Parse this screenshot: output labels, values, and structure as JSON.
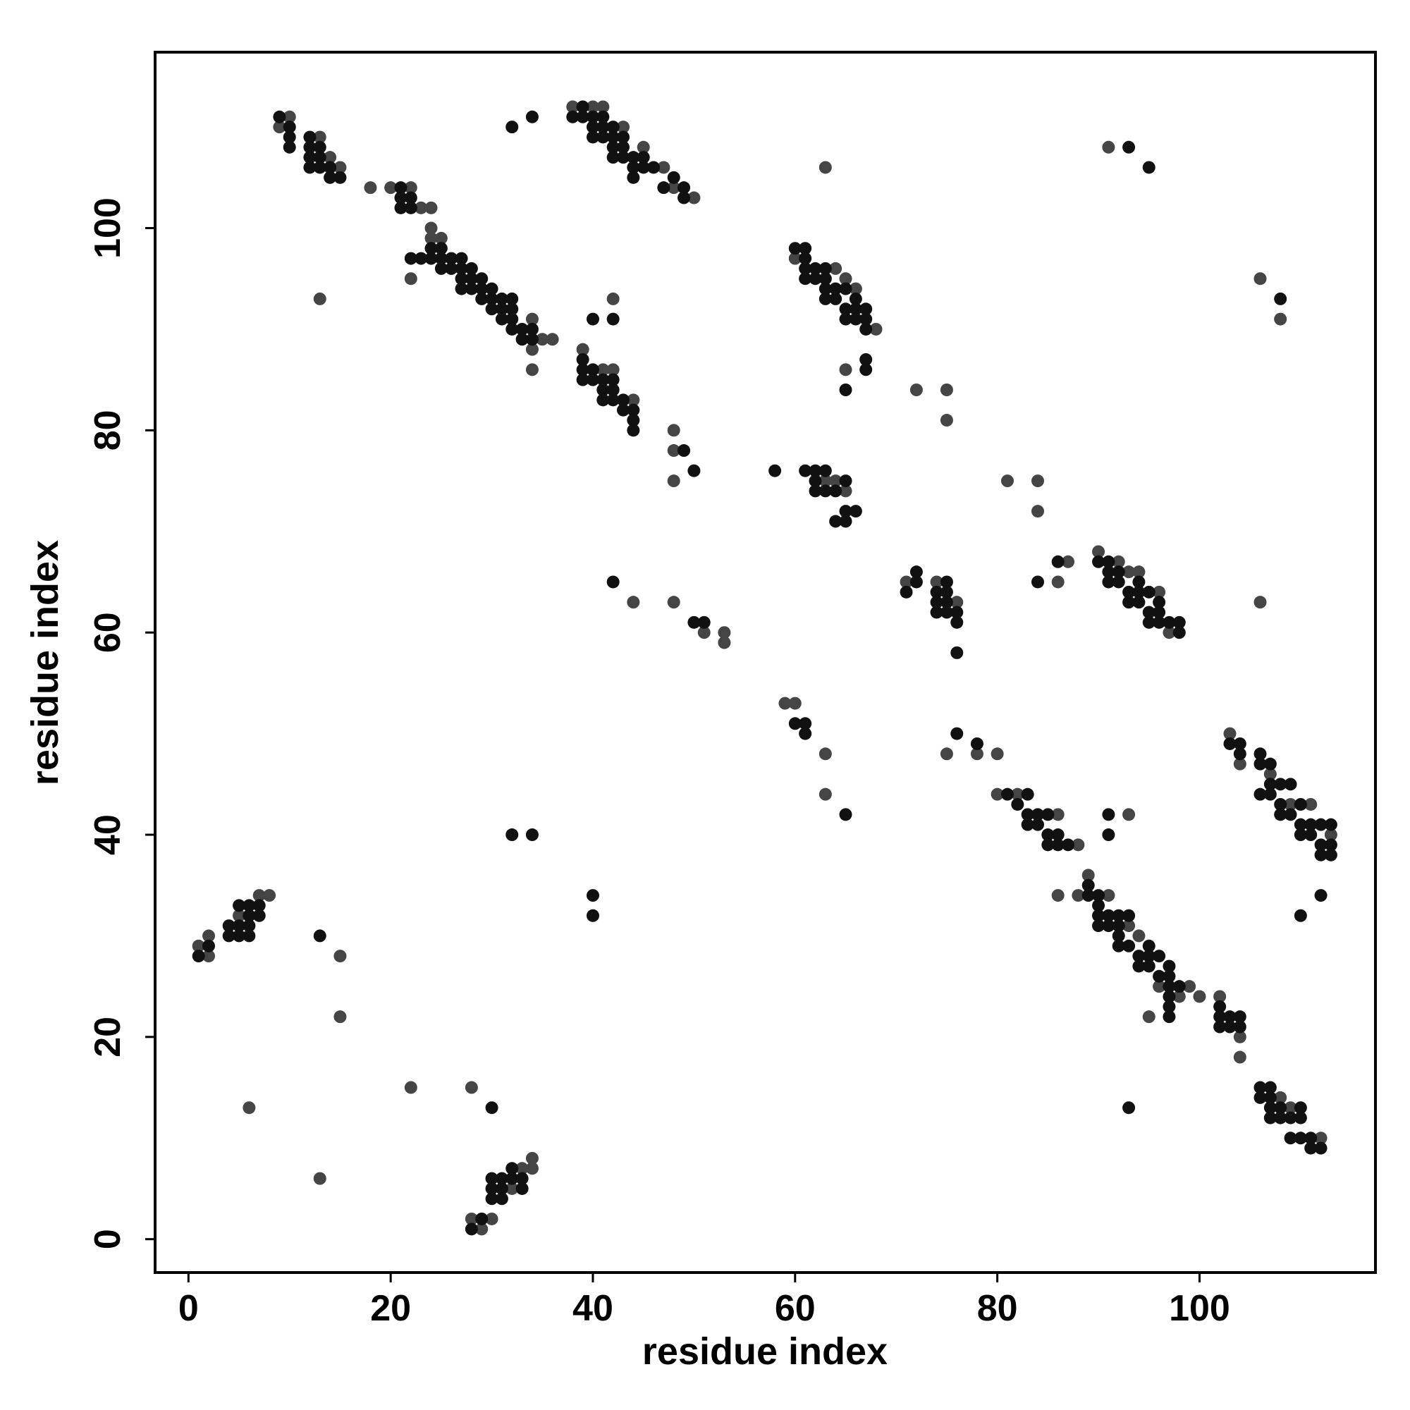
{
  "chart_data": {
    "type": "scatter",
    "x_label": "residue index",
    "y_label": "residue index",
    "xlim": [
      -3.3,
      117.4
    ],
    "ylim": [
      -3.3,
      117.4
    ],
    "xticks": [
      0,
      20,
      40,
      60,
      80,
      100
    ],
    "yticks": [
      0,
      20,
      40,
      60,
      80,
      100
    ],
    "grid": false,
    "groups": [
      {
        "color": "#454545",
        "x": [
          9,
          10,
          13,
          14,
          15,
          18,
          20,
          22,
          23,
          24,
          24,
          24,
          25,
          22,
          13,
          34,
          34,
          34,
          35,
          36,
          38,
          40,
          41,
          43,
          45,
          47,
          48,
          50,
          42,
          39,
          42,
          41,
          44,
          48,
          48,
          48,
          63,
          60,
          64,
          65,
          66,
          68,
          65,
          63,
          64,
          65,
          72,
          75,
          75,
          71,
          74,
          76,
          81,
          84,
          84,
          86,
          87,
          90,
          92,
          93,
          94,
          96,
          97,
          91,
          106,
          108,
          106,
          44,
          48,
          51,
          53,
          53,
          59,
          60,
          63,
          63,
          75,
          78,
          80,
          80,
          82,
          86,
          88,
          93,
          103,
          104,
          107,
          109,
          111,
          113,
          86,
          88,
          89,
          91,
          93,
          94,
          96,
          98,
          99,
          100,
          95,
          102,
          104,
          104,
          108,
          109,
          112,
          1,
          2,
          2,
          5,
          7,
          8,
          15,
          15,
          6,
          13,
          22,
          28,
          28,
          29,
          30,
          33,
          34,
          34,
          32
        ],
        "y": [
          110,
          111,
          109,
          107,
          106,
          104,
          104,
          104,
          102,
          102,
          100,
          99,
          99,
          95,
          93,
          91,
          88,
          86,
          89,
          89,
          112,
          112,
          112,
          110,
          108,
          106,
          104,
          103,
          93,
          88,
          86,
          86,
          83,
          80,
          75,
          78,
          106,
          97,
          96,
          95,
          94,
          90,
          86,
          75,
          75,
          74,
          84,
          84,
          81,
          65,
          65,
          63,
          75,
          75,
          72,
          65,
          67,
          68,
          67,
          66,
          66,
          64,
          60,
          108,
          95,
          91,
          63,
          63,
          63,
          60,
          60,
          59,
          53,
          53,
          48,
          44,
          48,
          48,
          48,
          44,
          44,
          42,
          39,
          42,
          50,
          47,
          46,
          43,
          43,
          40,
          34,
          34,
          36,
          34,
          31,
          30,
          25,
          24,
          25,
          24,
          22,
          24,
          20,
          18,
          14,
          13,
          10,
          29,
          30,
          28,
          32,
          34,
          34,
          28,
          22,
          13,
          6,
          15,
          15,
          2,
          1,
          2,
          7,
          8,
          7,
          5
        ]
      },
      {
        "color": "#111111",
        "x": [
          9,
          10,
          10,
          10,
          12,
          12,
          12,
          12,
          13,
          13,
          13,
          14,
          14,
          15,
          21,
          21,
          21,
          22,
          22,
          24,
          24,
          23,
          22,
          25,
          25,
          25,
          26,
          26,
          27,
          27,
          27,
          27,
          28,
          28,
          28,
          29,
          29,
          29,
          30,
          30,
          30,
          31,
          31,
          31,
          32,
          32,
          32,
          32,
          33,
          33,
          34,
          34,
          32,
          34,
          38,
          39,
          39,
          40,
          40,
          40,
          41,
          41,
          41,
          42,
          42,
          42,
          42,
          43,
          43,
          43,
          44,
          44,
          44,
          45,
          45,
          46,
          47,
          48,
          49,
          49,
          40,
          42,
          39,
          39,
          39,
          40,
          40,
          41,
          41,
          41,
          42,
          42,
          42,
          43,
          43,
          44,
          44,
          44,
          49,
          50,
          58,
          60,
          61,
          61,
          61,
          61,
          62,
          62,
          63,
          63,
          63,
          63,
          64,
          64,
          65,
          65,
          65,
          66,
          66,
          66,
          67,
          67,
          67,
          67,
          67,
          65,
          61,
          62,
          62,
          62,
          63,
          63,
          64,
          65,
          65,
          65,
          66,
          64,
          71,
          72,
          72,
          74,
          74,
          74,
          75,
          75,
          75,
          75,
          76,
          76,
          76,
          84,
          86,
          90,
          91,
          91,
          91,
          92,
          92,
          93,
          93,
          94,
          94,
          94,
          95,
          95,
          95,
          96,
          96,
          96,
          97,
          98,
          98,
          93,
          95,
          108,
          42,
          50,
          51,
          60,
          61,
          61,
          65,
          76,
          78,
          81,
          82,
          83,
          83,
          83,
          84,
          84,
          85,
          85,
          85,
          86,
          86,
          87,
          91,
          91,
          103,
          104,
          104,
          106,
          106,
          106,
          107,
          107,
          107,
          108,
          108,
          108,
          109,
          109,
          110,
          110,
          110,
          111,
          111,
          112,
          112,
          112,
          113,
          113,
          113,
          112,
          110,
          89,
          89,
          90,
          90,
          90,
          90,
          91,
          91,
          92,
          92,
          92,
          92,
          93,
          93,
          94,
          94,
          95,
          95,
          95,
          96,
          96,
          97,
          97,
          97,
          97,
          97,
          97,
          98,
          102,
          102,
          102,
          103,
          103,
          104,
          104,
          106,
          106,
          107,
          107,
          107,
          107,
          108,
          108,
          109,
          110,
          110,
          109,
          110,
          111,
          111,
          112,
          93,
          1,
          2,
          4,
          4,
          5,
          5,
          5,
          6,
          6,
          6,
          6,
          7,
          7,
          13,
          32,
          34,
          40,
          40,
          30,
          28,
          29,
          30,
          30,
          30,
          31,
          31,
          31,
          32,
          32,
          33,
          33
        ],
        "y": [
          111,
          110,
          109,
          108,
          109,
          108,
          107,
          106,
          108,
          107,
          106,
          106,
          105,
          105,
          104,
          103,
          102,
          103,
          102,
          98,
          97,
          97,
          97,
          98,
          97,
          96,
          97,
          96,
          97,
          96,
          95,
          94,
          96,
          95,
          94,
          95,
          94,
          93,
          94,
          93,
          92,
          93,
          92,
          91,
          93,
          92,
          91,
          90,
          90,
          89,
          90,
          89,
          110,
          111,
          111,
          112,
          111,
          111,
          110,
          109,
          111,
          110,
          109,
          110,
          109,
          108,
          107,
          109,
          108,
          107,
          107,
          106,
          105,
          107,
          106,
          106,
          104,
          105,
          104,
          103,
          91,
          91,
          87,
          86,
          85,
          86,
          85,
          85,
          84,
          83,
          85,
          84,
          83,
          83,
          82,
          82,
          81,
          80,
          78,
          76,
          76,
          98,
          98,
          97,
          96,
          95,
          96,
          95,
          96,
          95,
          94,
          93,
          94,
          93,
          94,
          92,
          91,
          93,
          92,
          91,
          92,
          91,
          90,
          87,
          86,
          84,
          76,
          76,
          75,
          74,
          76,
          74,
          74,
          75,
          72,
          71,
          72,
          71,
          64,
          66,
          65,
          64,
          63,
          62,
          65,
          64,
          63,
          62,
          62,
          61,
          58,
          65,
          67,
          67,
          67,
          66,
          65,
          66,
          65,
          64,
          63,
          65,
          64,
          63,
          64,
          62,
          61,
          63,
          62,
          61,
          61,
          61,
          60,
          108,
          106,
          93,
          65,
          61,
          61,
          51,
          51,
          50,
          42,
          50,
          49,
          44,
          43,
          44,
          42,
          41,
          42,
          41,
          42,
          40,
          39,
          40,
          39,
          39,
          42,
          40,
          49,
          49,
          48,
          48,
          47,
          44,
          47,
          45,
          44,
          45,
          43,
          42,
          45,
          42,
          43,
          41,
          40,
          41,
          40,
          41,
          39,
          38,
          41,
          39,
          38,
          34,
          32,
          35,
          34,
          34,
          33,
          32,
          31,
          32,
          31,
          32,
          31,
          30,
          29,
          32,
          29,
          28,
          27,
          29,
          28,
          27,
          28,
          26,
          27,
          26,
          25,
          24,
          23,
          22,
          25,
          23,
          22,
          21,
          22,
          21,
          22,
          21,
          15,
          14,
          15,
          14,
          13,
          12,
          13,
          12,
          12,
          13,
          12,
          10,
          10,
          10,
          9,
          9,
          13,
          28,
          29,
          31,
          30,
          33,
          31,
          30,
          33,
          32,
          31,
          30,
          33,
          32,
          30,
          40,
          40,
          34,
          32,
          13,
          1,
          2,
          6,
          5,
          4,
          6,
          5,
          4,
          7,
          6,
          6,
          5
        ]
      }
    ]
  }
}
